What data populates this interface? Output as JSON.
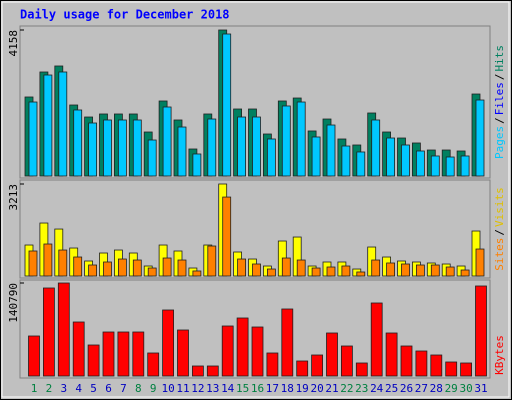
{
  "chart_data": [
    {
      "type": "bar",
      "title": "Daily usage for December 2018",
      "ylim": [
        0,
        4158
      ],
      "yticks": [
        4158
      ],
      "legend_separator": "/",
      "series": [
        {
          "name": "Hits",
          "color": "#008060",
          "values": [
            2250,
            2962,
            3133,
            2022,
            1680,
            1766,
            1766,
            1766,
            1253,
            2136,
            1595,
            769,
            1766,
            4158,
            1908,
            1908,
            1196,
            2136,
            2221,
            1282,
            1623,
            1054,
            883,
            1794,
            1253,
            1082,
            940,
            740,
            740,
            712,
            2335
          ]
        },
        {
          "name": "Files",
          "color": "#0000FF"
        },
        {
          "name": "Pages",
          "color": "#00C8FF",
          "values": [
            2107,
            2876,
            2962,
            1880,
            1509,
            1595,
            1595,
            1595,
            1025,
            1965,
            1395,
            627,
            1623,
            4044,
            1680,
            1680,
            1054,
            1994,
            2107,
            1111,
            1452,
            854,
            684,
            1595,
            1082,
            883,
            712,
            570,
            541,
            570,
            2164
          ]
        }
      ]
    },
    {
      "type": "bar",
      "ylim": [
        0,
        3213
      ],
      "yticks": [
        3213
      ],
      "legend_separator": "/",
      "series": [
        {
          "name": "Visits",
          "color": "#FFFF00",
          "values": [
            1082,
            1850,
            1640,
            977,
            524,
            803,
            907,
            803,
            349,
            1082,
            873,
            279,
            1082,
            3213,
            838,
            593,
            349,
            1222,
            1361,
            349,
            489,
            489,
            244,
            1012,
            663,
            524,
            489,
            454,
            419,
            349,
            1571
          ]
        },
        {
          "name": "Sites",
          "color": "#FF8000",
          "values": [
            873,
            1117,
            907,
            663,
            384,
            489,
            593,
            558,
            279,
            628,
            558,
            175,
            1047,
            2757,
            593,
            419,
            244,
            628,
            558,
            279,
            314,
            349,
            140,
            558,
            454,
            419,
            384,
            384,
            314,
            209,
            942
          ]
        }
      ]
    },
    {
      "type": "bar",
      "ylim": [
        0,
        140790
      ],
      "yticks": [
        140790
      ],
      "categories": [
        "1",
        "2",
        "3",
        "4",
        "5",
        "6",
        "7",
        "8",
        "9",
        "10",
        "11",
        "12",
        "13",
        "14",
        "15",
        "16",
        "17",
        "18",
        "19",
        "20",
        "21",
        "22",
        "23",
        "24",
        "25",
        "26",
        "27",
        "28",
        "29",
        "30",
        "31"
      ],
      "category_colors": [
        "#008040",
        "#008040",
        "#0000C0",
        "#0000C0",
        "#0000C0",
        "#0000C0",
        "#0000C0",
        "#008040",
        "#008040",
        "#0000C0",
        "#0000C0",
        "#0000C0",
        "#0000C0",
        "#0000C0",
        "#008040",
        "#008040",
        "#0000C0",
        "#0000C0",
        "#0000C0",
        "#0000C0",
        "#0000C0",
        "#008040",
        "#008040",
        "#0000C0",
        "#0000C0",
        "#0000C0",
        "#0000C0",
        "#0000C0",
        "#008040",
        "#008040",
        "#0000C0"
      ],
      "series": [
        {
          "name": "KBytes",
          "color": "#FF0000",
          "values": [
            60560,
            133232,
            140790,
            81756,
            46934,
            66616,
            66616,
            66616,
            34822,
            99924,
            69644,
            15140,
            15140,
            75700,
            87812,
            74186,
            34822,
            101438,
            22710,
            31794,
            65102,
            45420,
            19682,
            110522,
            65102,
            45420,
            37850,
            31794,
            21196,
            19682,
            136260
          ]
        }
      ]
    }
  ]
}
